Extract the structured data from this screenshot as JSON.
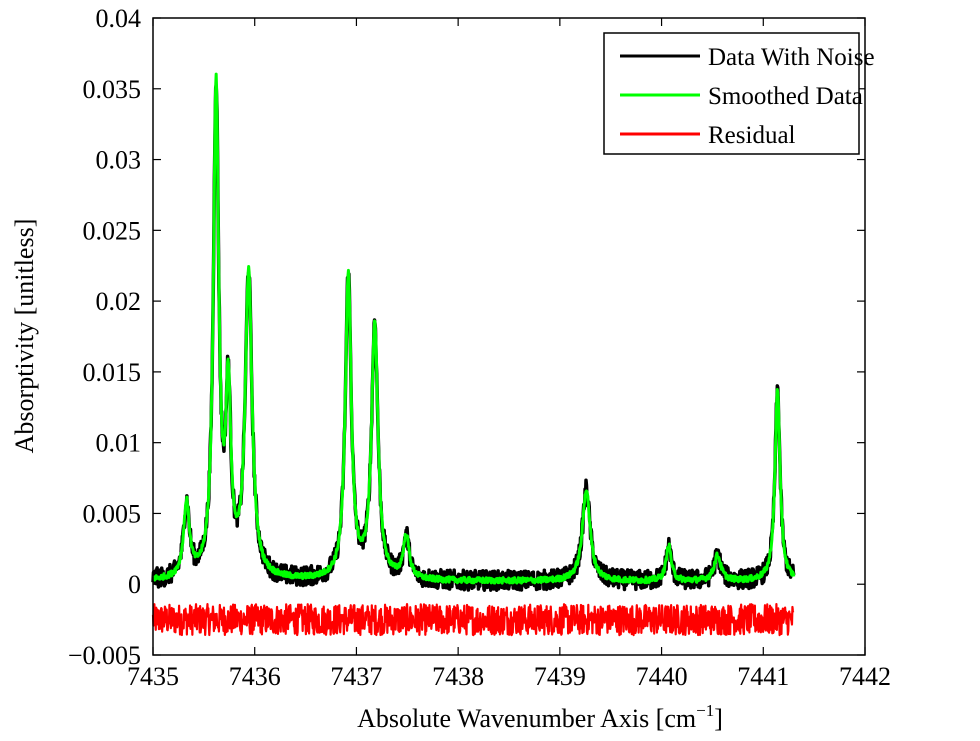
{
  "chart_data": {
    "type": "line",
    "xlabel": "Absolute Wavenumber Axis [cm",
    "xlabel_sup": "−1",
    "xlabel_end": "]",
    "ylabel": "Absorptivity [unitless]",
    "xlim": [
      7435,
      7442
    ],
    "ylim": [
      -0.005,
      0.04
    ],
    "x_ticks": [
      7435,
      7436,
      7437,
      7438,
      7439,
      7440,
      7441,
      7442
    ],
    "x_tick_labels": [
      "7435",
      "7436",
      "7437",
      "7438",
      "7439",
      "7440",
      "7441",
      "7442"
    ],
    "y_ticks": [
      -0.005,
      0,
      0.005,
      0.01,
      0.015,
      0.02,
      0.025,
      0.03,
      0.035,
      0.04
    ],
    "y_tick_labels": [
      "−0.005",
      "0",
      "0.005",
      "0.01",
      "0.015",
      "0.02",
      "0.025",
      "0.03",
      "0.035",
      "0.04"
    ],
    "grid": false,
    "legend_position": "top-right",
    "data_x_range": [
      7435.0,
      7441.3
    ],
    "baseline": 0.0002,
    "peaks": [
      {
        "x": 7435.33,
        "height": 0.0052
      },
      {
        "x": 7435.62,
        "height": 0.0345
      },
      {
        "x": 7435.74,
        "height": 0.0125
      },
      {
        "x": 7435.94,
        "height": 0.0215
      },
      {
        "x": 7436.92,
        "height": 0.0215
      },
      {
        "x": 7437.18,
        "height": 0.018
      },
      {
        "x": 7437.49,
        "height": 0.003
      },
      {
        "x": 7439.26,
        "height": 0.0065
      },
      {
        "x": 7440.07,
        "height": 0.0025
      },
      {
        "x": 7440.55,
        "height": 0.0018
      },
      {
        "x": 7441.14,
        "height": 0.0135
      }
    ],
    "series": [
      {
        "name": "Data With Noise",
        "color": "#000000",
        "noise_amplitude": 0.0007
      },
      {
        "name": "Smoothed Data",
        "color": "#00ff00",
        "noise_amplitude": 0.0002
      },
      {
        "name": "Residual",
        "color": "#ff0000",
        "offset": -0.0025,
        "noise_amplitude": 0.0011
      }
    ]
  }
}
